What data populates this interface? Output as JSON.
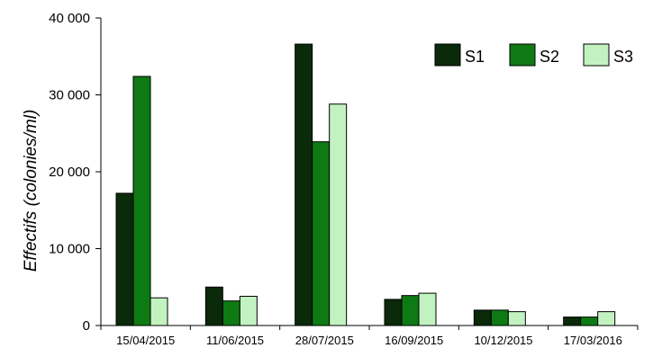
{
  "chart_data": {
    "type": "bar",
    "ylabel": "Effectifs (colonies/ml)",
    "categories": [
      "15/04/2015",
      "11/06/2015",
      "28/07/2015",
      "16/09/2015",
      "10/12/2015",
      "17/03/2016"
    ],
    "series": [
      {
        "name": "S1",
        "color": "#0a2a0a",
        "values": [
          17200,
          5000,
          36600,
          3400,
          2000,
          1100
        ]
      },
      {
        "name": "S2",
        "color": "#0e7a14",
        "values": [
          32400,
          3200,
          23900,
          3900,
          2000,
          1100
        ]
      },
      {
        "name": "S3",
        "color": "#c2f2c0",
        "values": [
          3600,
          3800,
          28800,
          4200,
          1800,
          1800
        ]
      }
    ],
    "ylim": [
      0,
      40000
    ],
    "yticks": [
      0,
      10000,
      20000,
      30000,
      40000
    ],
    "ytick_labels": [
      "0",
      "10 000",
      "20 000",
      "30 000",
      "40 000"
    ],
    "legend_position": "top-right",
    "grid": false
  }
}
